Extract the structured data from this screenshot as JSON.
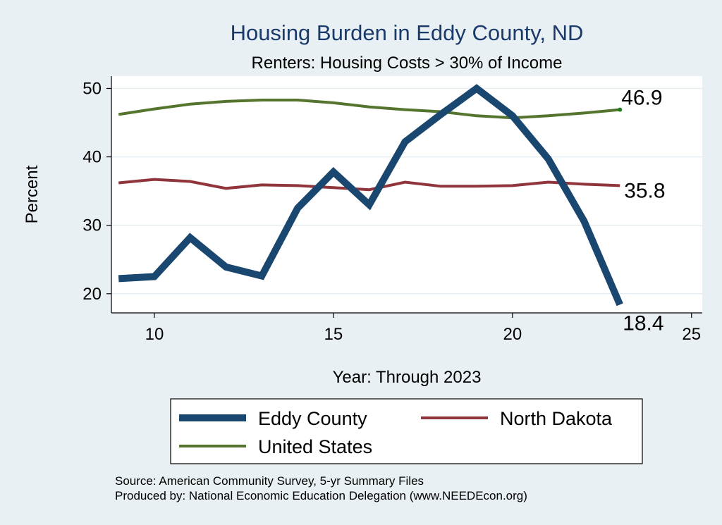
{
  "chart_data": {
    "type": "line",
    "title": "Housing Burden in Eddy County, ND",
    "subtitle": "Renters: Housing Costs > 30% of Income",
    "xlabel": "Year: Through 2023",
    "ylabel": "Percent",
    "xlim": [
      8.8,
      25.3
    ],
    "ylim": [
      17.2,
      51.8
    ],
    "x_ticks": [
      10,
      15,
      20,
      25
    ],
    "y_ticks": [
      20,
      30,
      40,
      50
    ],
    "grid": true,
    "legend_position": "bottom",
    "series": [
      {
        "name": "Eddy County",
        "color": "#1a476f",
        "x": [
          9,
          10,
          11,
          12,
          13,
          14,
          15,
          16,
          17,
          18,
          19,
          20,
          21,
          22,
          23
        ],
        "values": [
          22.2,
          22.5,
          28.2,
          23.9,
          22.6,
          32.5,
          37.8,
          33.0,
          42.2,
          46.2,
          50.0,
          46.0,
          39.7,
          30.6,
          18.4
        ],
        "end_label": "18.4"
      },
      {
        "name": "North Dakota",
        "color": "#90353b",
        "x": [
          9,
          10,
          11,
          12,
          13,
          14,
          15,
          16,
          17,
          18,
          19,
          20,
          21,
          22,
          23
        ],
        "values": [
          36.2,
          36.7,
          36.4,
          35.4,
          35.9,
          35.8,
          35.5,
          35.2,
          36.3,
          35.7,
          35.7,
          35.8,
          36.3,
          36.0,
          35.8
        ],
        "end_label": "35.8"
      },
      {
        "name": "United States",
        "color": "#55752f",
        "x": [
          9,
          10,
          11,
          12,
          13,
          14,
          15,
          16,
          17,
          18,
          19,
          20,
          21,
          22,
          23
        ],
        "values": [
          46.2,
          47.0,
          47.7,
          48.1,
          48.3,
          48.3,
          47.9,
          47.3,
          46.9,
          46.6,
          46.0,
          45.7,
          46.0,
          46.4,
          46.9
        ],
        "end_label": "46.9"
      }
    ],
    "notes": [
      "Source: American Community Survey, 5-yr Summary Files",
      "Produced by: National Economic Education Delegation (www.NEEDEcon.org)"
    ]
  }
}
